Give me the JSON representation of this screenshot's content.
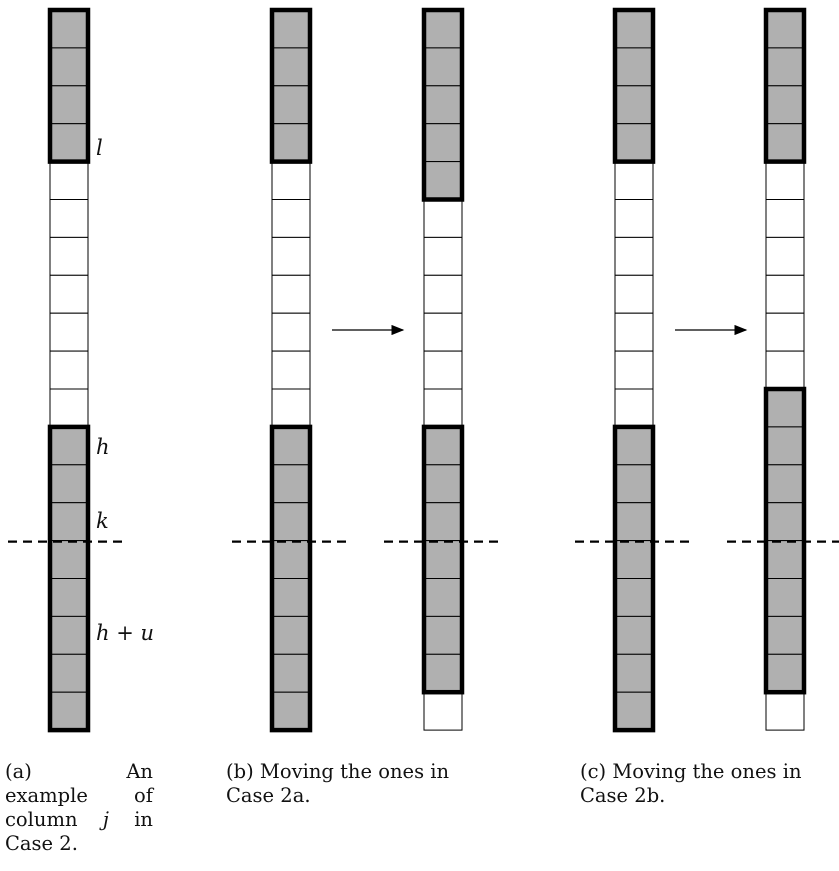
{
  "diagram": {
    "colors": {
      "shaded": "#b0b0b0",
      "stroke": "#000000",
      "background": "#ffffff"
    },
    "labels": {
      "l": "l",
      "h": "h",
      "k": "k",
      "h_plus_u": "h + u"
    },
    "columns": [
      {
        "id": "a-original",
        "shaded_blocks": [
          [
            0,
            3
          ],
          [
            11,
            18
          ]
        ]
      },
      {
        "id": "b-before",
        "shaded_blocks": [
          [
            0,
            3
          ],
          [
            11,
            18
          ]
        ]
      },
      {
        "id": "b-after",
        "shaded_blocks": [
          [
            0,
            4
          ],
          [
            11,
            17
          ]
        ]
      },
      {
        "id": "c-before",
        "shaded_blocks": [
          [
            0,
            3
          ],
          [
            11,
            18
          ]
        ]
      },
      {
        "id": "c-after",
        "shaded_blocks": [
          [
            0,
            3
          ],
          [
            10,
            17
          ]
        ]
      }
    ],
    "dashed_line_row": 14,
    "arrows": [
      "arrow-case-2a",
      "arrow-case-2b"
    ]
  },
  "captions": {
    "a": {
      "lines": [
        "(a)",
        "An",
        "example",
        "of",
        "column",
        "in",
        "Case 2."
      ],
      "var": "j"
    },
    "b": {
      "line1": "(b) Moving the ones in",
      "line2": "Case 2a."
    },
    "c": {
      "line1": "(c) Moving the ones in",
      "line2": "Case 2b."
    }
  }
}
